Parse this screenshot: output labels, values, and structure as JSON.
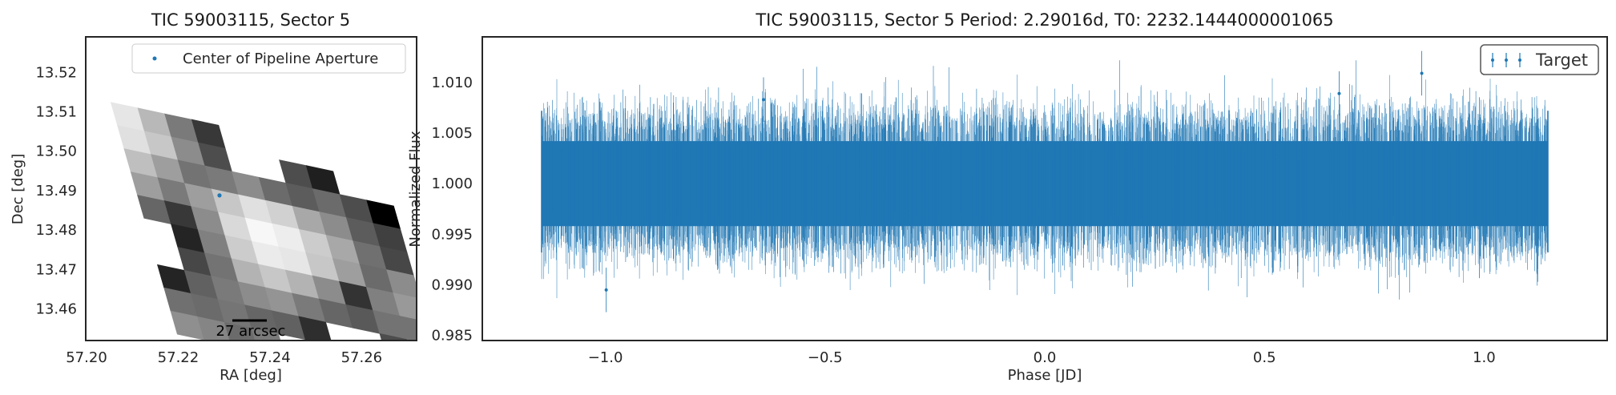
{
  "chart_data": [
    {
      "type": "heatmap",
      "title": "TIC 59003115, Sector 5",
      "xlabel": "RA [deg]",
      "ylabel": "Dec [deg]",
      "xlim": [
        57.2,
        57.272
      ],
      "ylim": [
        13.452,
        13.529
      ],
      "x_ticks": [
        "57.20",
        "57.22",
        "57.24",
        "57.26"
      ],
      "y_ticks": [
        "13.46",
        "13.47",
        "13.48",
        "13.49",
        "13.50",
        "13.51",
        "13.52"
      ],
      "grid": false,
      "legend": {
        "placement": "top-right",
        "entries": [
          "Center of Pipeline Aperture"
        ]
      },
      "scalebar_label": "27 arcsec",
      "aperture_center": {
        "ra": 57.229,
        "dec": 13.4888
      },
      "image_origin": {
        "ra": 57.2053,
        "dec": 13.5124
      },
      "col_step": {
        "ra": 0.00588,
        "dec": -0.00145
      },
      "row_step": {
        "ra": 0.00145,
        "dec": -0.00588
      },
      "pixels": [
        [
          0.9,
          0.72,
          0.48,
          0.22,
          null,
          null,
          null,
          null,
          null,
          null,
          null
        ],
        [
          0.88,
          0.78,
          0.55,
          0.3,
          null,
          null,
          0.3,
          0.12,
          null,
          null,
          null
        ],
        [
          0.75,
          0.62,
          0.45,
          0.48,
          0.55,
          0.42,
          0.36,
          0.42,
          0.3,
          0.0,
          null
        ],
        [
          0.62,
          0.48,
          0.62,
          0.78,
          0.88,
          0.82,
          0.66,
          0.55,
          0.36,
          0.25,
          null
        ],
        [
          0.4,
          0.22,
          0.55,
          0.85,
          0.97,
          0.93,
          0.8,
          0.66,
          0.44,
          0.28,
          null
        ],
        [
          null,
          0.14,
          0.5,
          0.8,
          0.92,
          0.9,
          0.78,
          0.62,
          0.42,
          0.55,
          null
        ],
        [
          null,
          0.28,
          0.45,
          0.7,
          0.78,
          0.7,
          0.55,
          0.2,
          0.5,
          0.6,
          null
        ],
        [
          0.14,
          0.38,
          0.48,
          0.55,
          0.58,
          0.48,
          0.4,
          0.35,
          0.45,
          0.45,
          null
        ],
        [
          0.44,
          0.42,
          0.46,
          0.4,
          0.38,
          0.18,
          null,
          null,
          0.3,
          null,
          null
        ],
        [
          0.56,
          0.52,
          0.42,
          0.48,
          null,
          null,
          null,
          null,
          null,
          null,
          null
        ]
      ]
    },
    {
      "type": "scatter",
      "title": "TIC 59003115, Sector 5 Period: 2.29016d, T0: 2232.1444000001065",
      "xlabel": "Phase [JD]",
      "ylabel": "Normalized Flux",
      "xlim": [
        -1.28,
        1.28
      ],
      "ylim": [
        0.9845,
        1.0145
      ],
      "x_ticks": [
        "−1.0",
        "−0.5",
        "0.0",
        "0.5",
        "1.0"
      ],
      "y_ticks": [
        "0.985",
        "0.990",
        "0.995",
        "1.000",
        "1.005",
        "1.010"
      ],
      "grid": false,
      "legend": {
        "placement": "top-right",
        "entries": [
          "Target"
        ]
      },
      "series": [
        {
          "name": "Target",
          "color": "#1f77b4",
          "x_range": [
            -1.145,
            1.145
          ],
          "y_center": 1.0,
          "typical_errorbar_range": [
            0.9945,
            1.0055
          ],
          "outliers": [
            {
              "x": 0.858,
              "y": 1.0109
            },
            {
              "x": -0.998,
              "y": 0.9895
            },
            {
              "x": 0.67,
              "y": 1.0089
            },
            {
              "x": -0.64,
              "y": 1.0083
            }
          ]
        }
      ]
    }
  ]
}
